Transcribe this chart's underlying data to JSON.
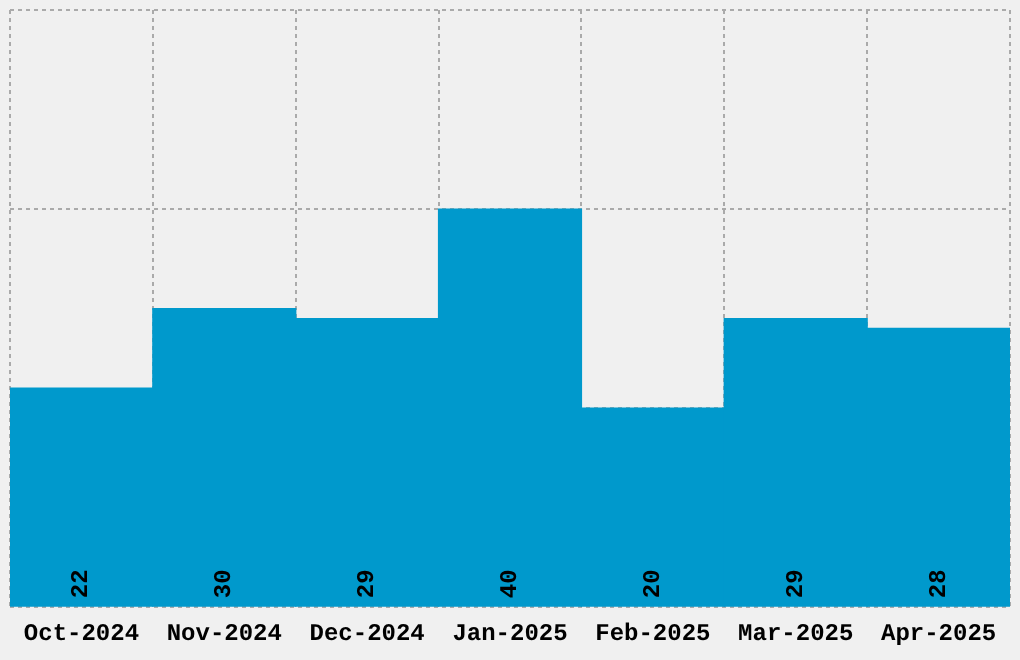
{
  "chart_data": {
    "type": "bar",
    "categories": [
      "Oct-2024",
      "Nov-2024",
      "Dec-2024",
      "Jan-2025",
      "Feb-2025",
      "Mar-2025",
      "Apr-2025"
    ],
    "values": [
      22,
      30,
      29,
      40,
      20,
      29,
      28
    ],
    "color": "#0099cc",
    "tick_labels": "x",
    "grid": true,
    "data_labels": true
  }
}
